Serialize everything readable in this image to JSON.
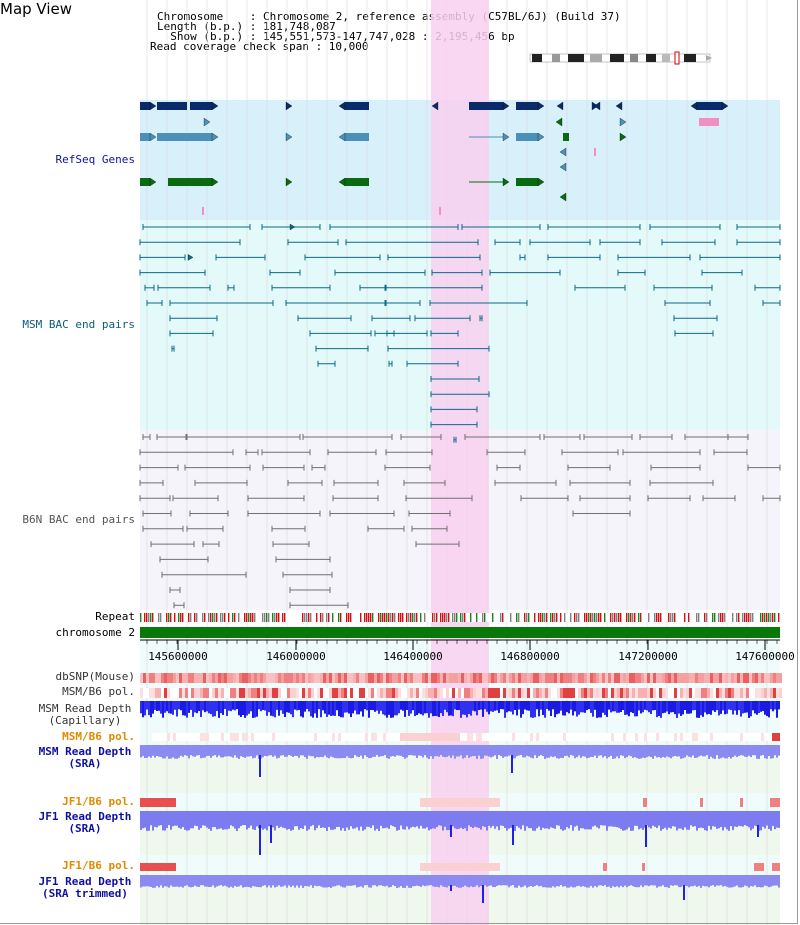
{
  "title": "Map View",
  "header": {
    "chromosome_line": "Chromosome    : Chromosome 2, reference assembly (C57BL/6J) (Build 37)",
    "length_line": "Length (b.p.) : 181,748,087",
    "show_line": "  Show (b.p.) : 145,551,573-147,747,028 : 2,195,456 bp",
    "coverage_line": "Read coverage check span : 10,000"
  },
  "tracks": {
    "refseq": "RefSeq Genes",
    "msm_bac": "MSM BAC end pairs",
    "b6n_bac": "B6N BAC end pairs",
    "repeat": "Repeat",
    "chromosome": "chromosome 2",
    "dbsnp": "dbSNP(Mouse)",
    "msm_pol": "MSM/B6 pol.",
    "msm_depth_cap_1": "MSM Read Depth",
    "msm_depth_cap_2": "(Capillary)",
    "msm_pol_sra": "MSM/B6 pol.",
    "msm_depth_sra_1": "MSM Read Depth",
    "msm_depth_sra_2": "(SRA)",
    "jf1_pol": "JF1/B6 pol.",
    "jf1_depth_1": "JF1 Read Depth",
    "jf1_depth_2": "(SRA)",
    "jf1_pol_2": "JF1/B6 pol.",
    "jf1_trim_1": "JF1 Read Depth",
    "jf1_trim_2": "(SRA trimmed)"
  },
  "axis": {
    "ticks": [
      "145600000",
      "146000000",
      "146400000",
      "146800000",
      "147200000",
      "147600000"
    ]
  },
  "colors": {
    "highlight": "#f8d0f0",
    "refseq_bg": "#d8f0fa",
    "msm_bg": "#e4fafa",
    "b6n_bg": "#f4f4fa",
    "chrom": "#087808",
    "dark_blue": "#0a2a6a",
    "mid_blue": "#4a90b8",
    "green": "#0a6a10",
    "teal": "#0a6a8a",
    "gray": "#707070",
    "depth_blue": "#2020e8",
    "light_depth": "#8080f0",
    "orange_label": "#e08a00",
    "navy_label": "#1010a0"
  }
}
